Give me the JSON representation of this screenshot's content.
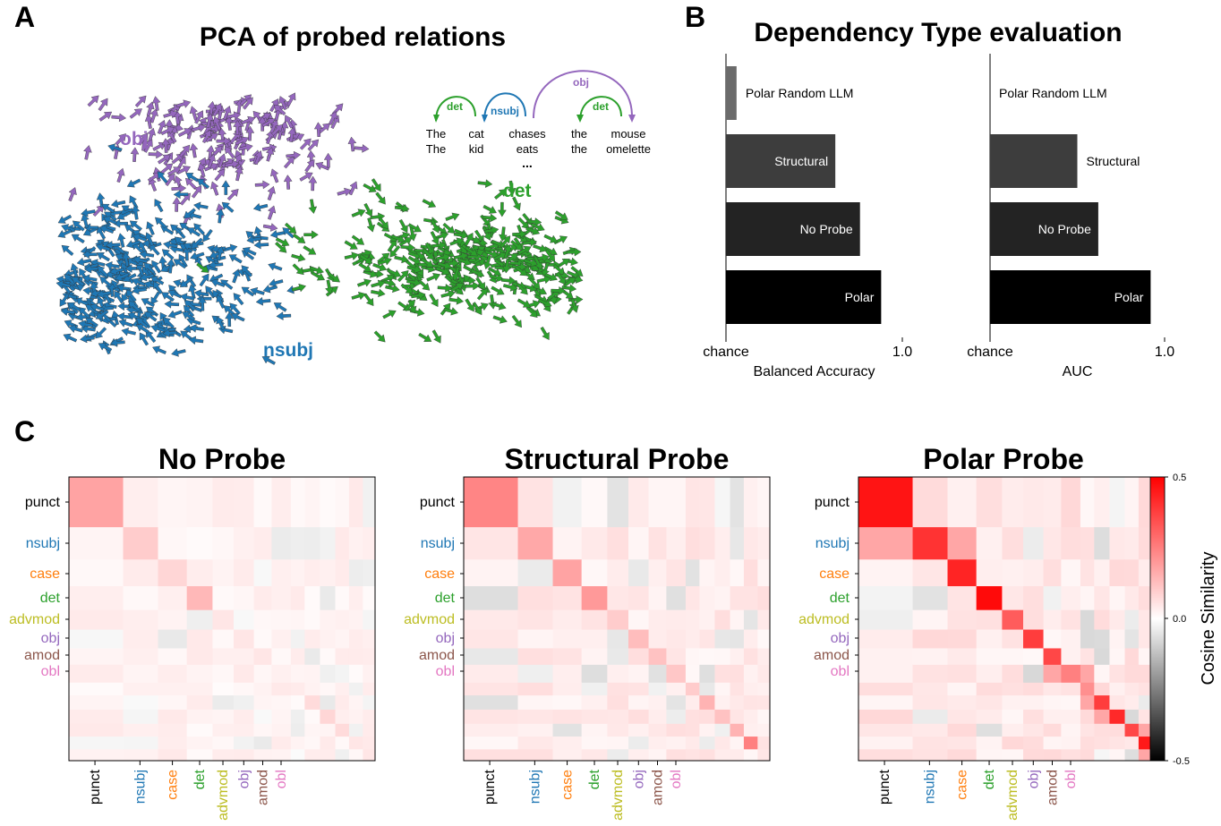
{
  "panels": {
    "a": {
      "letter": "A",
      "title": "PCA of probed relations"
    },
    "b": {
      "letter": "B",
      "title": "Dependency Type evaluation"
    },
    "c": {
      "letter": "C"
    }
  },
  "colors": {
    "punct": "#000000",
    "nsubj": "#1f77b4",
    "case": "#ff7f0e",
    "det": "#2ca02c",
    "advmod": "#bcbd22",
    "obj": "#9467bd",
    "amod": "#8c564b",
    "obl": "#e377c2"
  },
  "chart_data": [
    {
      "type": "scatter",
      "subtype": "quiver",
      "title": "PCA of probed relations",
      "series": [
        {
          "name": "obj",
          "color": "#9467bd",
          "center": [
            -0.35,
            0.55
          ],
          "count": 230
        },
        {
          "name": "nsubj",
          "color": "#1f77b4",
          "center": [
            -0.75,
            -0.25
          ],
          "count": 420
        },
        {
          "name": "det",
          "color": "#2ca02c",
          "center": [
            0.55,
            -0.2
          ],
          "count": 340
        }
      ],
      "example": {
        "arcs": [
          {
            "label": "det",
            "from": 0,
            "to": 1,
            "color": "#2ca02c"
          },
          {
            "label": "nsubj",
            "from": 1,
            "to": 2,
            "color": "#1f77b4"
          },
          {
            "label": "obj",
            "from": 2,
            "to": 4,
            "color": "#9467bd"
          },
          {
            "label": "det",
            "from": 3,
            "to": 4,
            "color": "#2ca02c"
          }
        ],
        "sentence1": [
          "The",
          "cat",
          "chases",
          "the",
          "mouse"
        ],
        "sentence2": [
          "The",
          "kid",
          "eats",
          "the",
          "omelette"
        ],
        "ellipsis": "..."
      }
    },
    {
      "type": "bar",
      "orientation": "horizontal",
      "xlabel": "Balanced Accuracy",
      "xtick_labels": [
        "chance",
        "1.0"
      ],
      "xlim": [
        0.5,
        1.0
      ],
      "categories": [
        "Polar Random LLM",
        "Structural",
        "No Probe",
        "Polar"
      ],
      "values": [
        0.53,
        0.81,
        0.88,
        0.94
      ],
      "bar_colors": [
        "#6b6b6b",
        "#3d3d3d",
        "#232323",
        "#000000"
      ]
    },
    {
      "type": "bar",
      "orientation": "horizontal",
      "xlabel": "AUC",
      "xtick_labels": [
        "chance",
        "1.0"
      ],
      "xlim": [
        0.5,
        1.0
      ],
      "categories": [
        "Polar Random LLM",
        "Structural",
        "No Probe",
        "Polar"
      ],
      "values": [
        0.5,
        0.75,
        0.81,
        0.96
      ],
      "bar_colors": [
        "#6b6b6b",
        "#3d3d3d",
        "#232323",
        "#000000"
      ]
    },
    {
      "type": "heatmap",
      "title": "No Probe",
      "labels": [
        "punct",
        "nsubj",
        "case",
        "det",
        "advmod",
        "obj",
        "amod",
        "obl"
      ],
      "diagonal": [
        0.18,
        0.1,
        0.08,
        0.14,
        0.05,
        0.05,
        0.05,
        0.03,
        0.04,
        0.07,
        0.08,
        0.07,
        0.05
      ],
      "offdiag_level": 0.04,
      "vmin": -0.5,
      "vmax": 0.5
    },
    {
      "type": "heatmap",
      "title": "Structural Probe",
      "labels": [
        "punct",
        "nsubj",
        "case",
        "det",
        "advmod",
        "obj",
        "amod",
        "obl"
      ],
      "diagonal": [
        0.24,
        0.17,
        0.18,
        0.2,
        0.1,
        0.13,
        0.12,
        0.11,
        0.1,
        0.15,
        0.12,
        0.15,
        0.25
      ],
      "offdiag_level": 0.06,
      "vmin": -0.5,
      "vmax": 0.5
    },
    {
      "type": "heatmap",
      "title": "Polar Probe",
      "labels": [
        "punct",
        "nsubj",
        "case",
        "det",
        "advmod",
        "obj",
        "amod",
        "obl"
      ],
      "diagonal": [
        0.46,
        0.4,
        0.43,
        0.48,
        0.32,
        0.38,
        0.36,
        0.25,
        0.22,
        0.38,
        0.42,
        0.36,
        0.45
      ],
      "offdiag_level": 0.07,
      "vmin": -0.5,
      "vmax": 0.5,
      "colorbar": {
        "label": "Cosine Similarity",
        "ticks": [
          "0.5",
          "0.0",
          "-0.5"
        ]
      }
    }
  ]
}
